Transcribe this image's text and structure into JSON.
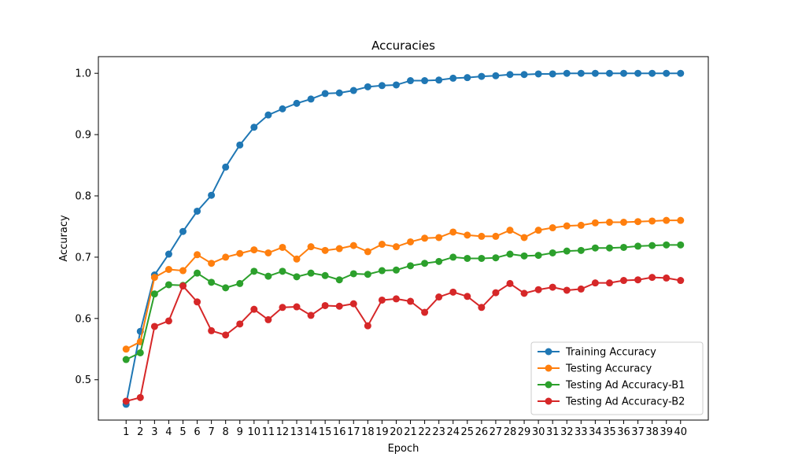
{
  "chart_data": {
    "type": "line",
    "title": "Accuracies",
    "xlabel": "Epoch",
    "ylabel": "Accuracy",
    "x": [
      1,
      2,
      3,
      4,
      5,
      6,
      7,
      8,
      9,
      10,
      11,
      12,
      13,
      14,
      15,
      16,
      17,
      18,
      19,
      20,
      21,
      22,
      23,
      24,
      25,
      26,
      27,
      28,
      29,
      30,
      31,
      32,
      33,
      34,
      35,
      36,
      37,
      38,
      39,
      40
    ],
    "xlim": [
      -0.95,
      41.95
    ],
    "ylim": [
      0.4342,
      1.0272
    ],
    "yticks": [
      0.5,
      0.6,
      0.7,
      0.8,
      0.9,
      1.0
    ],
    "ytick_labels": [
      "0.5",
      "0.6",
      "0.7",
      "0.8",
      "0.9",
      "1.0"
    ],
    "grid": false,
    "legend_position": "lower-right",
    "series": [
      {
        "name": "Training Accuracy",
        "color": "#1f77b4",
        "values": [
          0.46,
          0.579,
          0.671,
          0.705,
          0.742,
          0.775,
          0.801,
          0.847,
          0.883,
          0.912,
          0.932,
          0.942,
          0.951,
          0.958,
          0.967,
          0.968,
          0.972,
          0.978,
          0.98,
          0.981,
          0.988,
          0.988,
          0.989,
          0.992,
          0.993,
          0.995,
          0.996,
          0.998,
          0.998,
          0.999,
          0.999,
          1.0,
          1.0,
          1.0,
          1.0,
          1.0,
          1.0,
          1.0,
          1.0,
          1.0
        ]
      },
      {
        "name": "Testing Accuracy",
        "color": "#ff7f0e",
        "values": [
          0.55,
          0.562,
          0.667,
          0.68,
          0.678,
          0.704,
          0.69,
          0.7,
          0.706,
          0.712,
          0.707,
          0.716,
          0.697,
          0.717,
          0.711,
          0.714,
          0.719,
          0.709,
          0.721,
          0.717,
          0.725,
          0.731,
          0.732,
          0.741,
          0.736,
          0.734,
          0.734,
          0.744,
          0.732,
          0.744,
          0.748,
          0.751,
          0.752,
          0.756,
          0.757,
          0.757,
          0.758,
          0.759,
          0.76,
          0.76
        ]
      },
      {
        "name": "Testing Ad Accuracy-B1",
        "color": "#2ca02c",
        "values": [
          0.533,
          0.544,
          0.64,
          0.655,
          0.654,
          0.674,
          0.659,
          0.65,
          0.657,
          0.677,
          0.669,
          0.677,
          0.668,
          0.674,
          0.67,
          0.663,
          0.673,
          0.672,
          0.678,
          0.679,
          0.686,
          0.69,
          0.693,
          0.7,
          0.698,
          0.698,
          0.699,
          0.705,
          0.702,
          0.703,
          0.707,
          0.71,
          0.711,
          0.715,
          0.715,
          0.716,
          0.718,
          0.719,
          0.72,
          0.72
        ]
      },
      {
        "name": "Testing Ad Accuracy-B2",
        "color": "#d62728",
        "values": [
          0.465,
          0.471,
          0.587,
          0.596,
          0.653,
          0.627,
          0.58,
          0.573,
          0.591,
          0.615,
          0.598,
          0.618,
          0.619,
          0.605,
          0.621,
          0.62,
          0.624,
          0.588,
          0.63,
          0.632,
          0.628,
          0.61,
          0.635,
          0.643,
          0.636,
          0.618,
          0.642,
          0.657,
          0.641,
          0.647,
          0.651,
          0.646,
          0.648,
          0.658,
          0.658,
          0.662,
          0.663,
          0.667,
          0.666,
          0.662
        ]
      }
    ]
  }
}
